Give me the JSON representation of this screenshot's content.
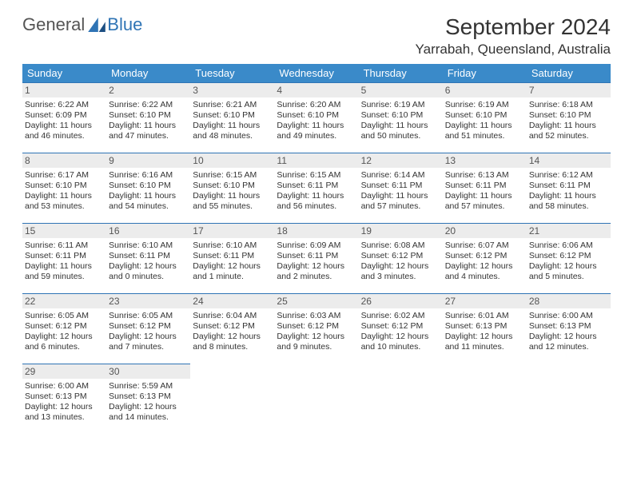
{
  "brand": {
    "part1": "General",
    "part2": "Blue"
  },
  "title": "September 2024",
  "location": "Yarrabah, Queensland, Australia",
  "colors": {
    "header_bg": "#3a8ac9",
    "header_text": "#ffffff",
    "daynum_bg": "#ececec",
    "border_accent": "#2f74b5",
    "body_text": "#333333"
  },
  "typography": {
    "month_title_fontsize": 28,
    "location_fontsize": 17,
    "dayheader_fontsize": 13,
    "daynum_fontsize": 12,
    "body_fontsize": 10.5
  },
  "dayNames": [
    "Sunday",
    "Monday",
    "Tuesday",
    "Wednesday",
    "Thursday",
    "Friday",
    "Saturday"
  ],
  "cells": {
    "r0c0": {
      "num": "1",
      "sr": "Sunrise: 6:22 AM",
      "ss": "Sunset: 6:09 PM",
      "d1": "Daylight: 11 hours",
      "d2": "and 46 minutes."
    },
    "r0c1": {
      "num": "2",
      "sr": "Sunrise: 6:22 AM",
      "ss": "Sunset: 6:10 PM",
      "d1": "Daylight: 11 hours",
      "d2": "and 47 minutes."
    },
    "r0c2": {
      "num": "3",
      "sr": "Sunrise: 6:21 AM",
      "ss": "Sunset: 6:10 PM",
      "d1": "Daylight: 11 hours",
      "d2": "and 48 minutes."
    },
    "r0c3": {
      "num": "4",
      "sr": "Sunrise: 6:20 AM",
      "ss": "Sunset: 6:10 PM",
      "d1": "Daylight: 11 hours",
      "d2": "and 49 minutes."
    },
    "r0c4": {
      "num": "5",
      "sr": "Sunrise: 6:19 AM",
      "ss": "Sunset: 6:10 PM",
      "d1": "Daylight: 11 hours",
      "d2": "and 50 minutes."
    },
    "r0c5": {
      "num": "6",
      "sr": "Sunrise: 6:19 AM",
      "ss": "Sunset: 6:10 PM",
      "d1": "Daylight: 11 hours",
      "d2": "and 51 minutes."
    },
    "r0c6": {
      "num": "7",
      "sr": "Sunrise: 6:18 AM",
      "ss": "Sunset: 6:10 PM",
      "d1": "Daylight: 11 hours",
      "d2": "and 52 minutes."
    },
    "r1c0": {
      "num": "8",
      "sr": "Sunrise: 6:17 AM",
      "ss": "Sunset: 6:10 PM",
      "d1": "Daylight: 11 hours",
      "d2": "and 53 minutes."
    },
    "r1c1": {
      "num": "9",
      "sr": "Sunrise: 6:16 AM",
      "ss": "Sunset: 6:10 PM",
      "d1": "Daylight: 11 hours",
      "d2": "and 54 minutes."
    },
    "r1c2": {
      "num": "10",
      "sr": "Sunrise: 6:15 AM",
      "ss": "Sunset: 6:10 PM",
      "d1": "Daylight: 11 hours",
      "d2": "and 55 minutes."
    },
    "r1c3": {
      "num": "11",
      "sr": "Sunrise: 6:15 AM",
      "ss": "Sunset: 6:11 PM",
      "d1": "Daylight: 11 hours",
      "d2": "and 56 minutes."
    },
    "r1c4": {
      "num": "12",
      "sr": "Sunrise: 6:14 AM",
      "ss": "Sunset: 6:11 PM",
      "d1": "Daylight: 11 hours",
      "d2": "and 57 minutes."
    },
    "r1c5": {
      "num": "13",
      "sr": "Sunrise: 6:13 AM",
      "ss": "Sunset: 6:11 PM",
      "d1": "Daylight: 11 hours",
      "d2": "and 57 minutes."
    },
    "r1c6": {
      "num": "14",
      "sr": "Sunrise: 6:12 AM",
      "ss": "Sunset: 6:11 PM",
      "d1": "Daylight: 11 hours",
      "d2": "and 58 minutes."
    },
    "r2c0": {
      "num": "15",
      "sr": "Sunrise: 6:11 AM",
      "ss": "Sunset: 6:11 PM",
      "d1": "Daylight: 11 hours",
      "d2": "and 59 minutes."
    },
    "r2c1": {
      "num": "16",
      "sr": "Sunrise: 6:10 AM",
      "ss": "Sunset: 6:11 PM",
      "d1": "Daylight: 12 hours",
      "d2": "and 0 minutes."
    },
    "r2c2": {
      "num": "17",
      "sr": "Sunrise: 6:10 AM",
      "ss": "Sunset: 6:11 PM",
      "d1": "Daylight: 12 hours",
      "d2": "and 1 minute."
    },
    "r2c3": {
      "num": "18",
      "sr": "Sunrise: 6:09 AM",
      "ss": "Sunset: 6:11 PM",
      "d1": "Daylight: 12 hours",
      "d2": "and 2 minutes."
    },
    "r2c4": {
      "num": "19",
      "sr": "Sunrise: 6:08 AM",
      "ss": "Sunset: 6:12 PM",
      "d1": "Daylight: 12 hours",
      "d2": "and 3 minutes."
    },
    "r2c5": {
      "num": "20",
      "sr": "Sunrise: 6:07 AM",
      "ss": "Sunset: 6:12 PM",
      "d1": "Daylight: 12 hours",
      "d2": "and 4 minutes."
    },
    "r2c6": {
      "num": "21",
      "sr": "Sunrise: 6:06 AM",
      "ss": "Sunset: 6:12 PM",
      "d1": "Daylight: 12 hours",
      "d2": "and 5 minutes."
    },
    "r3c0": {
      "num": "22",
      "sr": "Sunrise: 6:05 AM",
      "ss": "Sunset: 6:12 PM",
      "d1": "Daylight: 12 hours",
      "d2": "and 6 minutes."
    },
    "r3c1": {
      "num": "23",
      "sr": "Sunrise: 6:05 AM",
      "ss": "Sunset: 6:12 PM",
      "d1": "Daylight: 12 hours",
      "d2": "and 7 minutes."
    },
    "r3c2": {
      "num": "24",
      "sr": "Sunrise: 6:04 AM",
      "ss": "Sunset: 6:12 PM",
      "d1": "Daylight: 12 hours",
      "d2": "and 8 minutes."
    },
    "r3c3": {
      "num": "25",
      "sr": "Sunrise: 6:03 AM",
      "ss": "Sunset: 6:12 PM",
      "d1": "Daylight: 12 hours",
      "d2": "and 9 minutes."
    },
    "r3c4": {
      "num": "26",
      "sr": "Sunrise: 6:02 AM",
      "ss": "Sunset: 6:12 PM",
      "d1": "Daylight: 12 hours",
      "d2": "and 10 minutes."
    },
    "r3c5": {
      "num": "27",
      "sr": "Sunrise: 6:01 AM",
      "ss": "Sunset: 6:13 PM",
      "d1": "Daylight: 12 hours",
      "d2": "and 11 minutes."
    },
    "r3c6": {
      "num": "28",
      "sr": "Sunrise: 6:00 AM",
      "ss": "Sunset: 6:13 PM",
      "d1": "Daylight: 12 hours",
      "d2": "and 12 minutes."
    },
    "r4c0": {
      "num": "29",
      "sr": "Sunrise: 6:00 AM",
      "ss": "Sunset: 6:13 PM",
      "d1": "Daylight: 12 hours",
      "d2": "and 13 minutes."
    },
    "r4c1": {
      "num": "30",
      "sr": "Sunrise: 5:59 AM",
      "ss": "Sunset: 6:13 PM",
      "d1": "Daylight: 12 hours",
      "d2": "and 14 minutes."
    }
  }
}
